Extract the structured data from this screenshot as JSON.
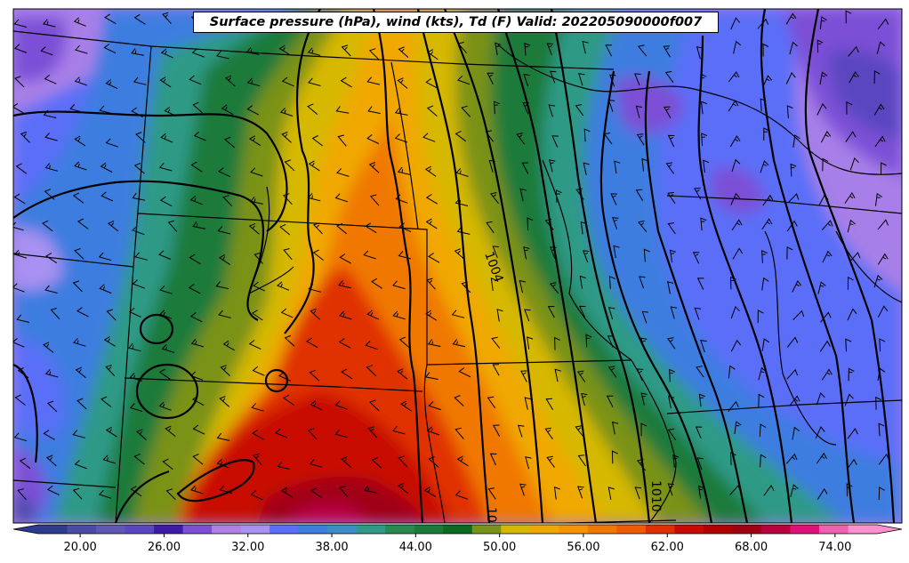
{
  "title": "Surface pressure (hPa), wind (kts), Td (F) Valid: 202205090000f007",
  "colorbar": {
    "min": 17,
    "max": 77,
    "tick_values": [
      20,
      26,
      32,
      38,
      44,
      50,
      56,
      62,
      68,
      74
    ],
    "tick_labels": [
      "20.00",
      "26.00",
      "32.00",
      "38.00",
      "44.00",
      "50.00",
      "56.00",
      "62.00",
      "68.00",
      "74.00"
    ],
    "colors": [
      "#2e3a8c",
      "#4a4aa8",
      "#5c58b4",
      "#5a46c0",
      "#3f1aa8",
      "#7b4fd6",
      "#b07fe8",
      "#a891f2",
      "#5a6ef8",
      "#3d7de0",
      "#3a8ec8",
      "#2f9a86",
      "#278a4c",
      "#1a7a3a",
      "#0c6a20",
      "#7a9218",
      "#d6b800",
      "#f0a800",
      "#f59400",
      "#f07800",
      "#f05a00",
      "#e03000",
      "#c80a00",
      "#b00000",
      "#a00014",
      "#b80040",
      "#e0107a",
      "#f060b0",
      "#ff90d0"
    ]
  },
  "contour_labels": [
    "1004",
    "1010",
    "10"
  ],
  "colors": {
    "contour": "#000000",
    "border": "#000000",
    "barb": "#000000"
  }
}
